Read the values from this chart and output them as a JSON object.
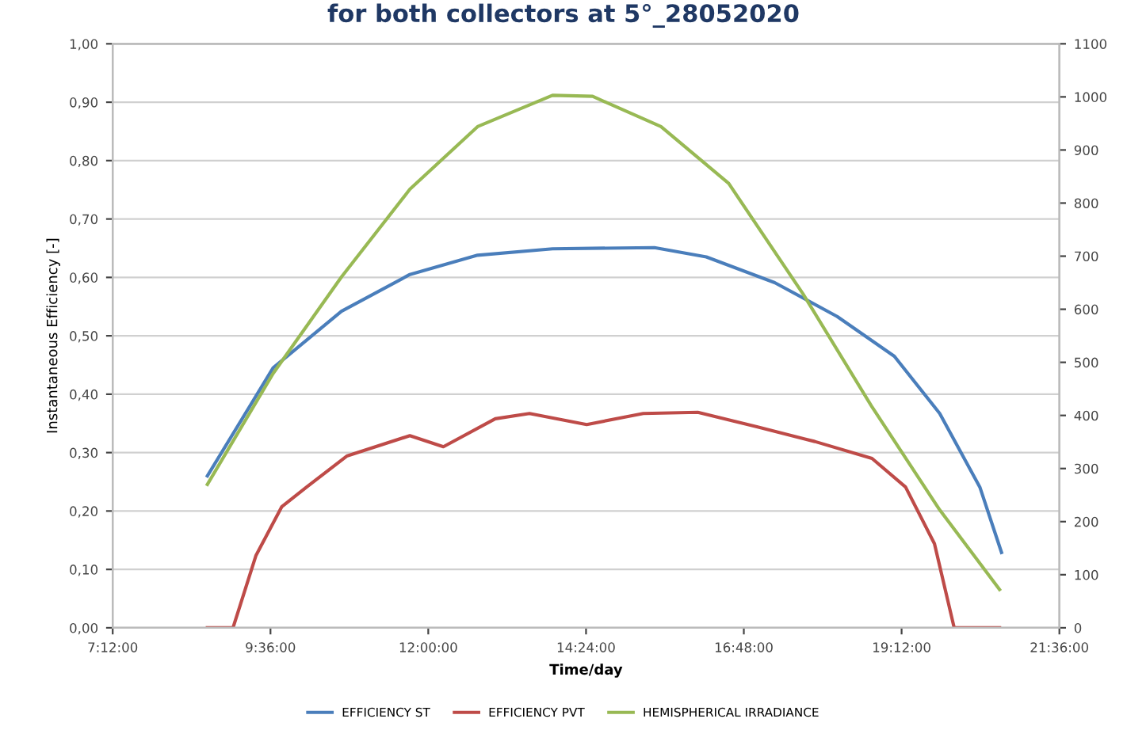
{
  "chart_data": {
    "type": "line",
    "title": "for both collectors at 5°_28052020",
    "xlabel": "Time/day",
    "ylabel": "Instantaneous Efficiency [-]",
    "xlim": [
      7.2,
      21.6
    ],
    "xticks": [
      {
        "value": 7.2,
        "label": "7:12:00"
      },
      {
        "value": 9.6,
        "label": "9:36:00"
      },
      {
        "value": 12,
        "label": "12:00:00"
      },
      {
        "value": 14.4,
        "label": "14:24:00"
      },
      {
        "value": 16.8,
        "label": "16:48:00"
      },
      {
        "value": 19.2,
        "label": "19:12:00"
      },
      {
        "value": 21.6,
        "label": "21:36:00"
      }
    ],
    "ylim": [
      0,
      1
    ],
    "yticks": [
      {
        "value": 0,
        "label": "0,00"
      },
      {
        "value": 0.1,
        "label": "0,10"
      },
      {
        "value": 0.2,
        "label": "0,20"
      },
      {
        "value": 0.3,
        "label": "0,30"
      },
      {
        "value": 0.4,
        "label": "0,40"
      },
      {
        "value": 0.5,
        "label": "0,50"
      },
      {
        "value": 0.6,
        "label": "0,60"
      },
      {
        "value": 0.7,
        "label": "0,70"
      },
      {
        "value": 0.8,
        "label": "0,80"
      },
      {
        "value": 0.9,
        "label": "0,90"
      },
      {
        "value": 1,
        "label": "1,00"
      }
    ],
    "y2lim": [
      0,
      1100
    ],
    "y2ticks": [
      0,
      100,
      200,
      300,
      400,
      500,
      600,
      700,
      800,
      900,
      1000,
      1100
    ],
    "grid": "y",
    "legend": "bottom",
    "marker": "none",
    "line_style": "solid",
    "series": [
      {
        "name": "EFFICIENCY ST",
        "color": "#4a7ebb",
        "x": [
          8.64,
          9.64,
          10.68,
          11.72,
          12.75,
          13.89,
          15.44,
          16.23,
          17.27,
          18.22,
          19.09,
          19.78,
          20.39,
          20.72
        ],
        "values": [
          0.26,
          0.445,
          0.542,
          0.605,
          0.638,
          0.649,
          0.651,
          0.635,
          0.591,
          0.533,
          0.465,
          0.367,
          0.241,
          0.129
        ]
      },
      {
        "name": "EFFICIENCY PVT",
        "color": "#be4b48",
        "x": [
          8.64,
          9.03,
          9.38,
          9.77,
          10.15,
          10.76,
          11.72,
          12.23,
          13.02,
          13.54,
          14.41,
          15.27,
          16.1,
          17.01,
          17.88,
          18.75,
          19.26,
          19.7,
          20.0,
          20.69
        ],
        "values": [
          0,
          0,
          0.124,
          0.207,
          0.241,
          0.294,
          0.329,
          0.31,
          0.358,
          0.367,
          0.348,
          0.367,
          0.369,
          0.344,
          0.319,
          0.29,
          0.241,
          0.144,
          0,
          0
        ]
      },
      {
        "name": "HEMISPHERICAL IRRADIANCE",
        "color": "#98b954",
        "axis": "y2",
        "x": [
          8.64,
          9.64,
          10.68,
          11.72,
          12.75,
          13.89,
          14.5,
          15.54,
          16.57,
          17.7,
          18.75,
          19.78,
          20.69
        ],
        "values": [
          270,
          479,
          661,
          826,
          944,
          1003,
          1001,
          944,
          837,
          629,
          416,
          222,
          72
        ]
      }
    ]
  }
}
